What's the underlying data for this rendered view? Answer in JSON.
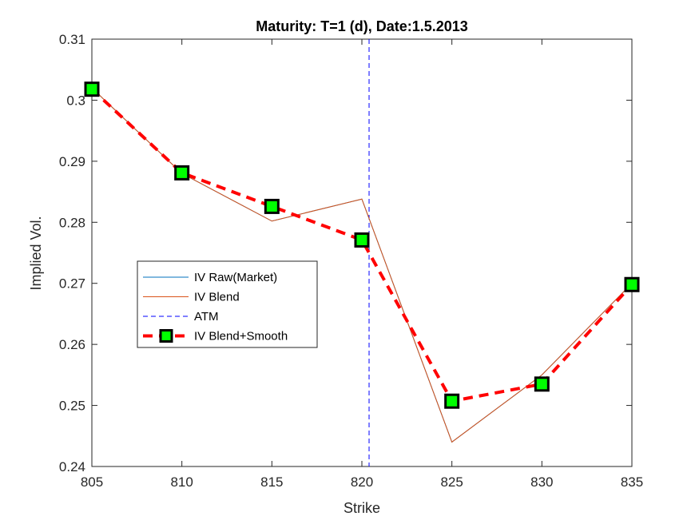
{
  "chart_data": {
    "type": "line",
    "title": "Maturity: T=1 (d), Date:1.5.2013",
    "xlabel": "Strike",
    "ylabel": "Implied Vol.",
    "xlim": [
      805,
      835
    ],
    "ylim": [
      0.24,
      0.31
    ],
    "xticks": [
      "805",
      "810",
      "815",
      "820",
      "825",
      "830",
      "835"
    ],
    "yticks": [
      "0.24",
      "0.25",
      "0.26",
      "0.27",
      "0.28",
      "0.29",
      "0.3",
      "0.31"
    ],
    "grid": false,
    "legend_position": "middle-left",
    "x": [
      805,
      810,
      815,
      820,
      825,
      830,
      835
    ],
    "series": [
      {
        "name": "IV Raw(Market)",
        "values": [
          0.302,
          0.288,
          0.2802,
          0.2838,
          0.244,
          0.255,
          0.27
        ],
        "color": "#0072BD",
        "style": "solid"
      },
      {
        "name": "IV Blend",
        "values": [
          0.302,
          0.288,
          0.2802,
          0.2838,
          0.244,
          0.255,
          0.27
        ],
        "color": "#D95319",
        "style": "solid"
      },
      {
        "name": "IV Blend+Smooth",
        "values": [
          0.3018,
          0.2881,
          0.2826,
          0.2771,
          0.2507,
          0.2535,
          0.2698
        ],
        "color": "#FF0000",
        "marker_fill": "#00FF00",
        "style": "dashed"
      }
    ],
    "vertical_lines": [
      {
        "name": "ATM",
        "x": 820.4,
        "color": "#0000FF",
        "style": "dashed"
      }
    ]
  }
}
